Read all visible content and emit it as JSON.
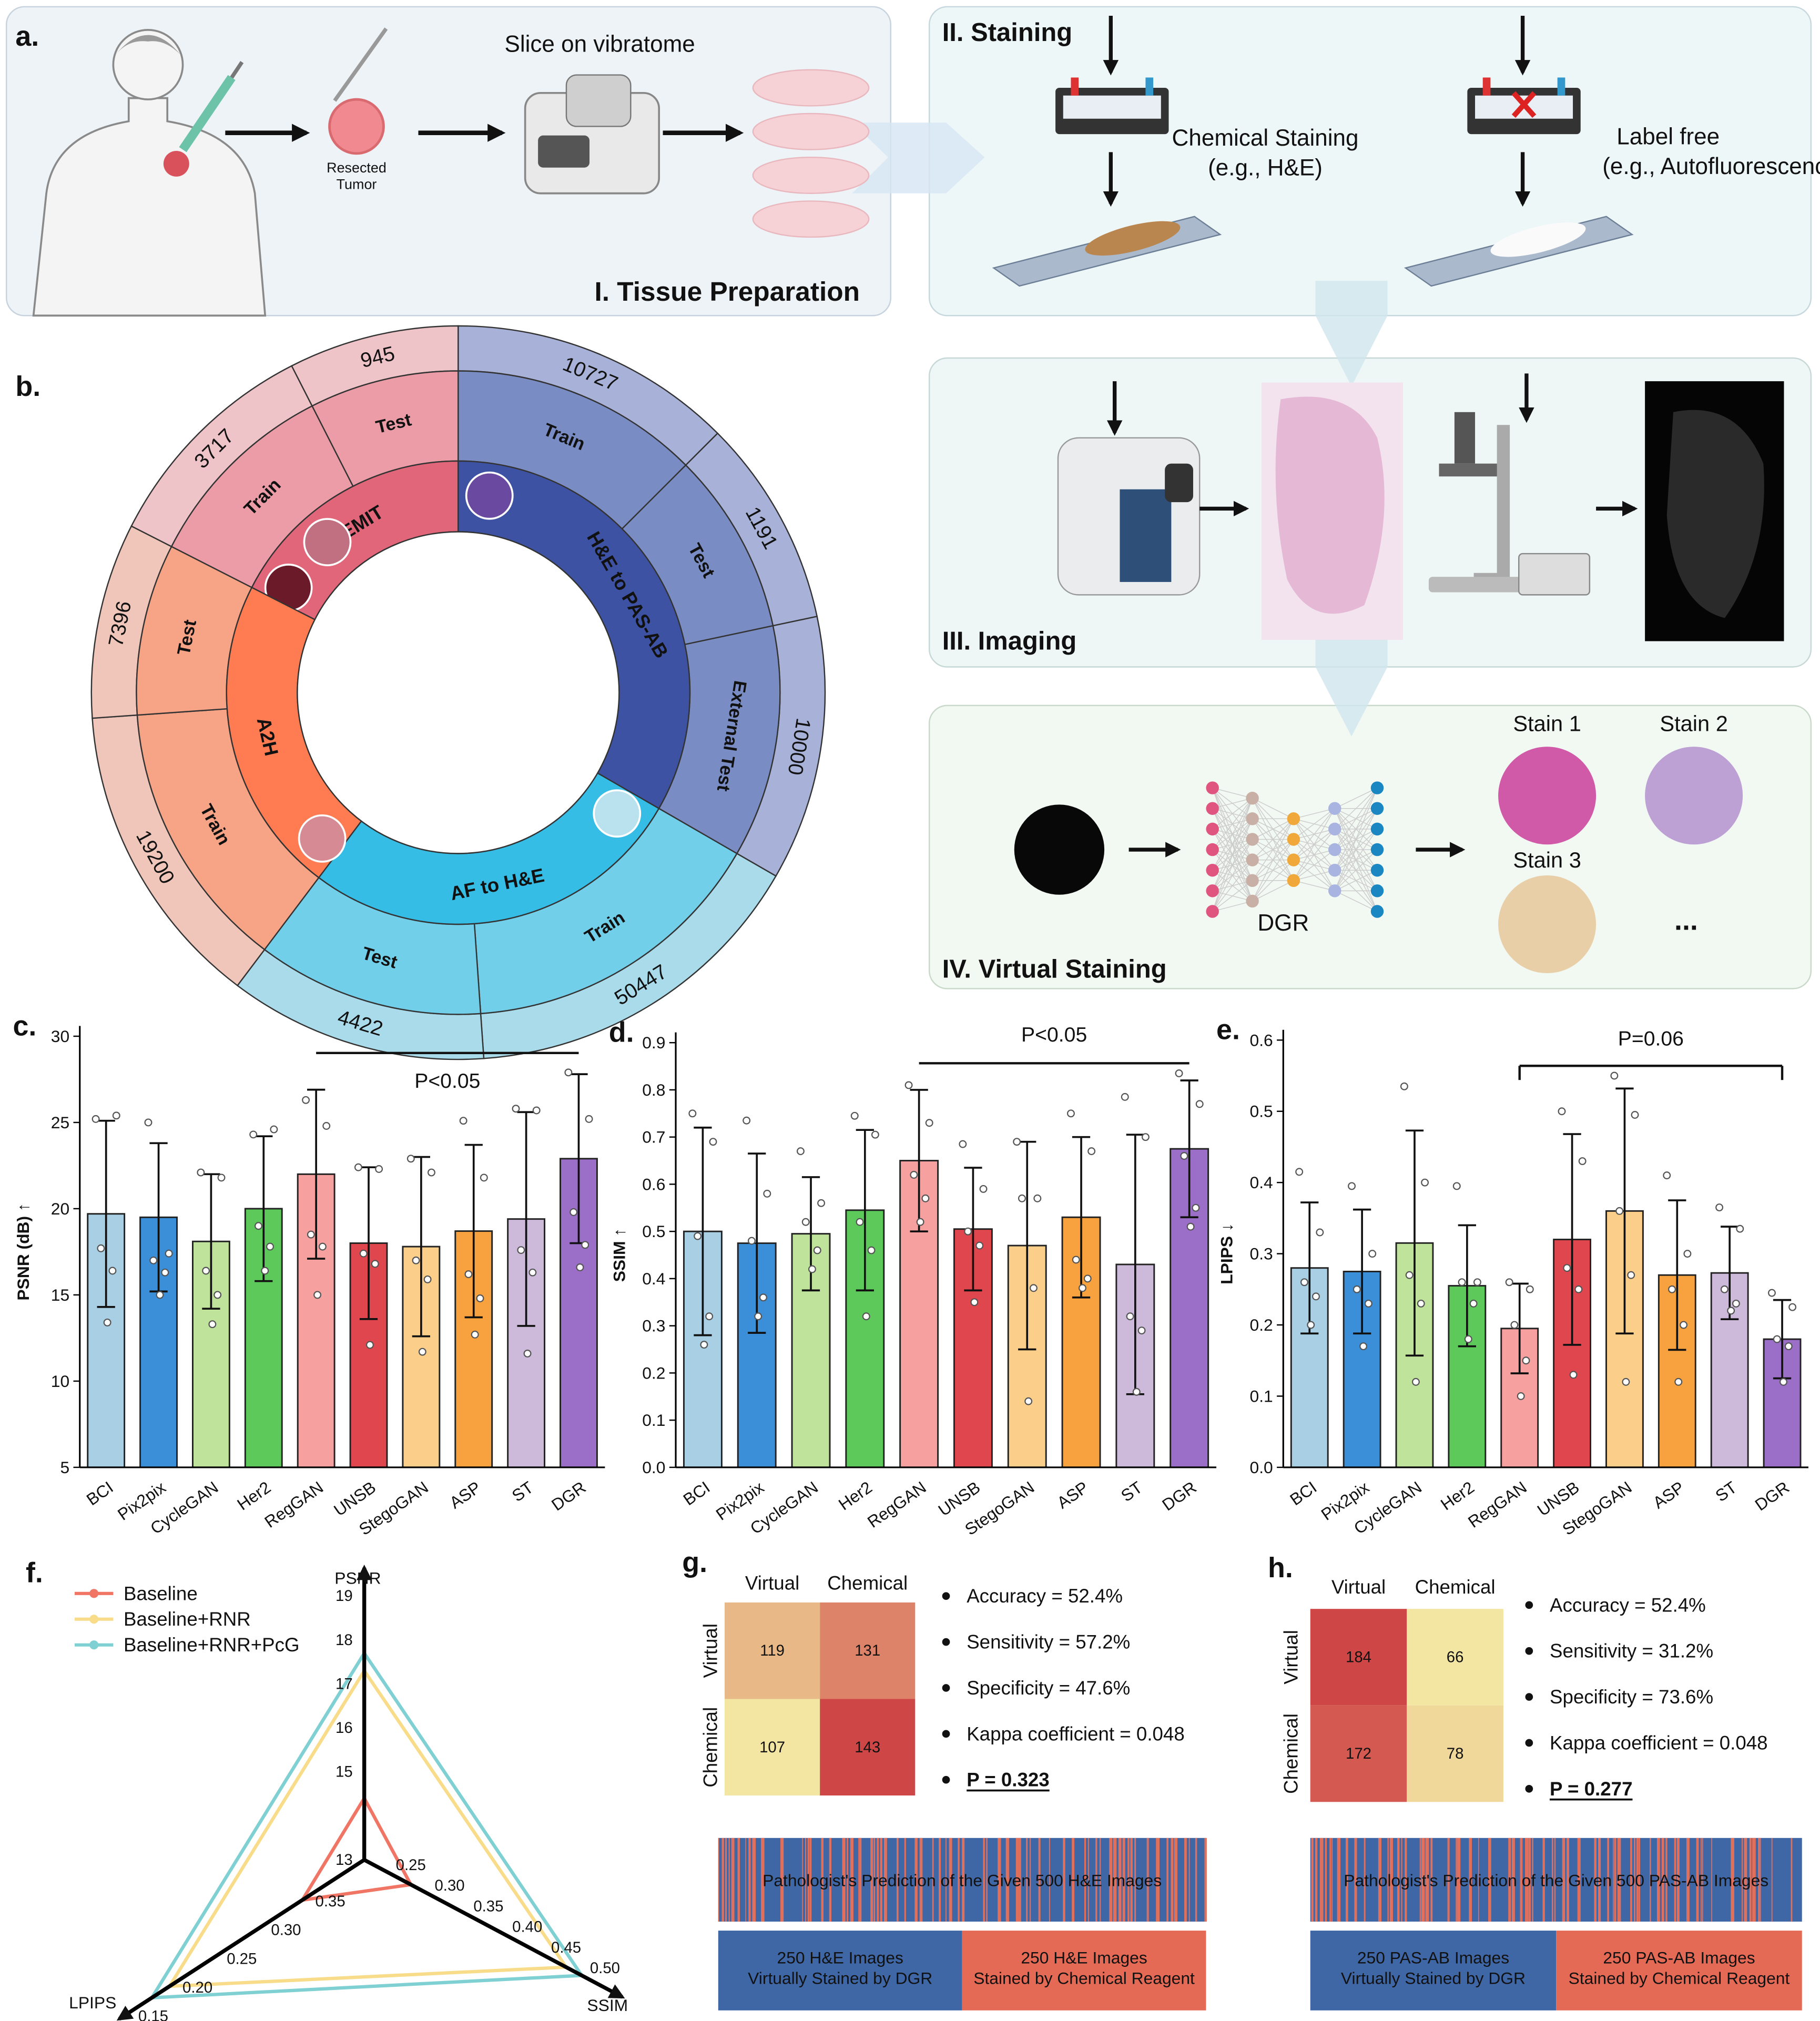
{
  "panel_a": {
    "label": "a.",
    "caption": "Slice on vibratome",
    "tumor": [
      "Resected",
      "Tumor"
    ],
    "title": "I. Tissue Preparation"
  },
  "panel_staining": {
    "title": "II. Staining",
    "chemical": [
      "Chemical Staining",
      "(e.g., H&E)"
    ],
    "label_free": [
      "Label free",
      "(e.g., Autofluorescence)"
    ]
  },
  "panel_imaging": {
    "title": "III. Imaging"
  },
  "panel_virtual": {
    "title": "IV. Virtual Staining",
    "model": "DGR",
    "stains": [
      "Stain 1",
      "Stain 2",
      "Stain 3"
    ],
    "more": "..."
  },
  "panel_b": {
    "label": "b.",
    "datasets": [
      {
        "name": "HEMIT",
        "splits": [
          {
            "name": "Train",
            "count": 3717
          },
          {
            "name": "Test",
            "count": 945
          }
        ]
      },
      {
        "name": "H&E to PAS-AB",
        "splits": [
          {
            "name": "Train",
            "count": 10727
          },
          {
            "name": "Test",
            "count": 1191
          },
          {
            "name": "External Test",
            "count": 10000
          }
        ]
      },
      {
        "name": "AF to H&E",
        "splits": [
          {
            "name": "Train",
            "count": 50447
          },
          {
            "name": "Test",
            "count": 4422
          }
        ]
      },
      {
        "name": "A2H",
        "splits": [
          {
            "name": "Train",
            "count": 19200
          },
          {
            "name": "Test",
            "count": 7396
          }
        ]
      }
    ]
  },
  "chart_data": [
    {
      "type": "bar",
      "label": "c.",
      "ylabel": "PSNR (dB) ↑",
      "categories": [
        "BCI",
        "Pix2pix",
        "CycleGAN",
        "Her2",
        "RegGAN",
        "UNSB",
        "StegoGAN",
        "ASP",
        "ST",
        "DGR"
      ],
      "colors": [
        "#a8cfe4",
        "#3b8fd9",
        "#bfe39a",
        "#5cc95a",
        "#f7a0a0",
        "#e0464d",
        "#fbcf8a",
        "#f7a23e",
        "#cdbadb",
        "#9b6fc8"
      ],
      "values": [
        19.7,
        19.5,
        18.1,
        20.0,
        22.0,
        18.0,
        17.8,
        18.7,
        19.4,
        22.9
      ],
      "errors": [
        5.4,
        4.3,
        3.9,
        4.2,
        4.9,
        4.4,
        5.2,
        5.0,
        6.2,
        4.9
      ],
      "points": [
        [
          25.2,
          25.4,
          17.7,
          16.4,
          13.4
        ],
        [
          25.0,
          17.4,
          17.0,
          16.3,
          15.0
        ],
        [
          22.1,
          21.8,
          16.4,
          15.0,
          13.3
        ],
        [
          24.3,
          24.6,
          19.0,
          17.8,
          16.4
        ],
        [
          26.3,
          24.8,
          18.5,
          17.8,
          15.0
        ],
        [
          22.4,
          22.3,
          17.4,
          16.8,
          12.1
        ],
        [
          22.9,
          22.1,
          17.0,
          15.9,
          11.7
        ],
        [
          25.1,
          21.8,
          16.2,
          14.8,
          12.7
        ],
        [
          25.8,
          25.7,
          17.6,
          16.3,
          11.6
        ],
        [
          27.9,
          25.2,
          19.8,
          17.9,
          16.6
        ]
      ],
      "ylim": [
        5,
        30
      ],
      "yticks": [
        5,
        10,
        15,
        20,
        25,
        30
      ],
      "annotation": "P<0.05"
    },
    {
      "type": "bar",
      "label": "d.",
      "ylabel": "SSIM ↑",
      "categories": [
        "BCI",
        "Pix2pix",
        "CycleGAN",
        "Her2",
        "RegGAN",
        "UNSB",
        "StegoGAN",
        "ASP",
        "ST",
        "DGR"
      ],
      "colors": [
        "#a8cfe4",
        "#3b8fd9",
        "#bfe39a",
        "#5cc95a",
        "#f7a0a0",
        "#e0464d",
        "#fbcf8a",
        "#f7a23e",
        "#cdbadb",
        "#9b6fc8"
      ],
      "values": [
        0.5,
        0.475,
        0.495,
        0.545,
        0.65,
        0.505,
        0.47,
        0.53,
        0.43,
        0.675
      ],
      "errors": [
        0.22,
        0.19,
        0.12,
        0.17,
        0.15,
        0.13,
        0.22,
        0.17,
        0.275,
        0.145
      ],
      "points": [
        [
          0.75,
          0.69,
          0.49,
          0.32,
          0.26
        ],
        [
          0.735,
          0.58,
          0.48,
          0.36,
          0.32
        ],
        [
          0.67,
          0.56,
          0.52,
          0.46,
          0.42
        ],
        [
          0.745,
          0.705,
          0.52,
          0.46,
          0.32
        ],
        [
          0.81,
          0.73,
          0.62,
          0.57,
          0.52
        ],
        [
          0.685,
          0.59,
          0.5,
          0.47,
          0.35
        ],
        [
          0.69,
          0.57,
          0.57,
          0.38,
          0.14
        ],
        [
          0.75,
          0.67,
          0.44,
          0.4,
          0.38
        ],
        [
          0.785,
          0.7,
          0.32,
          0.29,
          0.16
        ],
        [
          0.835,
          0.77,
          0.66,
          0.55,
          0.51
        ]
      ],
      "ylim": [
        0,
        0.9
      ],
      "yticks": [
        {
          "value": 0,
          "label": "0.0"
        },
        0.1,
        0.2,
        0.3,
        0.4,
        0.5,
        0.6,
        0.7,
        0.8,
        0.9
      ],
      "annotation": "P<0.05"
    },
    {
      "type": "bar",
      "label": "e.",
      "ylabel": "LPIPS ↓",
      "categories": [
        "BCI",
        "Pix2pix",
        "CycleGAN",
        "Her2",
        "RegGAN",
        "UNSB",
        "StegoGAN",
        "ASP",
        "ST",
        "DGR"
      ],
      "colors": [
        "#a8cfe4",
        "#3b8fd9",
        "#bfe39a",
        "#5cc95a",
        "#f7a0a0",
        "#e0464d",
        "#fbcf8a",
        "#f7a23e",
        "#cdbadb",
        "#9b6fc8"
      ],
      "values": [
        0.28,
        0.275,
        0.315,
        0.255,
        0.195,
        0.32,
        0.36,
        0.27,
        0.273,
        0.18
      ],
      "errors": [
        0.092,
        0.087,
        0.158,
        0.085,
        0.063,
        0.148,
        0.172,
        0.105,
        0.065,
        0.055
      ],
      "points": [
        [
          0.415,
          0.33,
          0.26,
          0.24,
          0.2
        ],
        [
          0.395,
          0.3,
          0.25,
          0.23,
          0.17
        ],
        [
          0.535,
          0.4,
          0.27,
          0.23,
          0.12
        ],
        [
          0.395,
          0.26,
          0.26,
          0.23,
          0.18
        ],
        [
          0.26,
          0.25,
          0.2,
          0.15,
          0.1
        ],
        [
          0.5,
          0.43,
          0.28,
          0.25,
          0.13
        ],
        [
          0.55,
          0.495,
          0.36,
          0.27,
          0.12
        ],
        [
          0.41,
          0.3,
          0.25,
          0.2,
          0.12
        ],
        [
          0.365,
          0.335,
          0.25,
          0.23,
          0.22
        ],
        [
          0.245,
          0.225,
          0.18,
          0.17,
          0.12
        ]
      ],
      "ylim": [
        0,
        0.6
      ],
      "yticks": [
        {
          "value": 0,
          "label": "0.0"
        },
        0.1,
        0.2,
        0.3,
        0.4,
        0.5,
        0.6
      ],
      "annotation": "P=0.06"
    },
    {
      "type": "radar",
      "label": "f.",
      "axes": [
        {
          "name": "PSNR",
          "lim": [
            13,
            19
          ],
          "ticks": [
            13,
            15,
            16,
            17,
            18,
            19
          ]
        },
        {
          "name": "SSIM",
          "lim": [
            0.2,
            0.5
          ],
          "ticks": [
            0.25,
            {
              "value": 0.3,
              "label": "0.30"
            },
            0.35,
            {
              "value": 0.4,
              "label": "0.40"
            },
            0.45,
            {
              "value": 0.5,
              "label": "0.50"
            }
          ]
        },
        {
          "name": "LPIPS",
          "lim": [
            0.4,
            0.15
          ],
          "ticks": [
            0.35,
            {
              "value": 0.3,
              "label": "0.30"
            },
            0.25,
            {
              "value": 0.2,
              "label": "0.20"
            },
            0.15
          ]
        }
      ],
      "series": [
        {
          "name": "Baseline",
          "color": "#f07565",
          "values": [
            14.4,
            0.26,
            0.33
          ]
        },
        {
          "name": "Baseline+RNR",
          "color": "#f8dc8a",
          "values": [
            17.3,
            0.46,
            0.18
          ]
        },
        {
          "name": "Baseline+RNR+PcG",
          "color": "#7fd0d2",
          "values": [
            17.7,
            0.48,
            0.16
          ]
        }
      ]
    },
    {
      "type": "heatmap",
      "label": "g.",
      "x_categories": [
        "Virtual",
        "Chemical"
      ],
      "y_categories": [
        "Virtual",
        "Chemical"
      ],
      "values": [
        [
          119,
          131
        ],
        [
          107,
          143
        ]
      ],
      "stats": [
        "Accuracy = 52.4%",
        "Sensitivity = 57.2%",
        "Specificity = 47.6%",
        "Kappa coefficient = 0.048",
        "P = 0.323"
      ],
      "strip_label": "Pathologist's Prediction of the Given 500 H&E Images",
      "groups": [
        [
          "250 H&E Images",
          "Virtually Stained by DGR"
        ],
        [
          "250 H&E Images",
          "Stained by Chemical Reagent"
        ]
      ]
    },
    {
      "type": "heatmap",
      "label": "h.",
      "x_categories": [
        "Virtual",
        "Chemical"
      ],
      "y_categories": [
        "Virtual",
        "Chemical"
      ],
      "values": [
        [
          184,
          66
        ],
        [
          172,
          78
        ]
      ],
      "stats": [
        "Accuracy = 52.4%",
        "Sensitivity = 31.2%",
        "Specificity = 73.6%",
        "Kappa coefficient = 0.048",
        "P = 0.277"
      ],
      "strip_label": "Pathologist's Prediction of the Given 500 PAS-AB Images",
      "groups": [
        [
          "250 PAS-AB Images",
          "Virtually Stained by DGR"
        ],
        [
          "250 PAS-AB Images",
          "Stained by Chemical Reagent"
        ]
      ]
    }
  ]
}
